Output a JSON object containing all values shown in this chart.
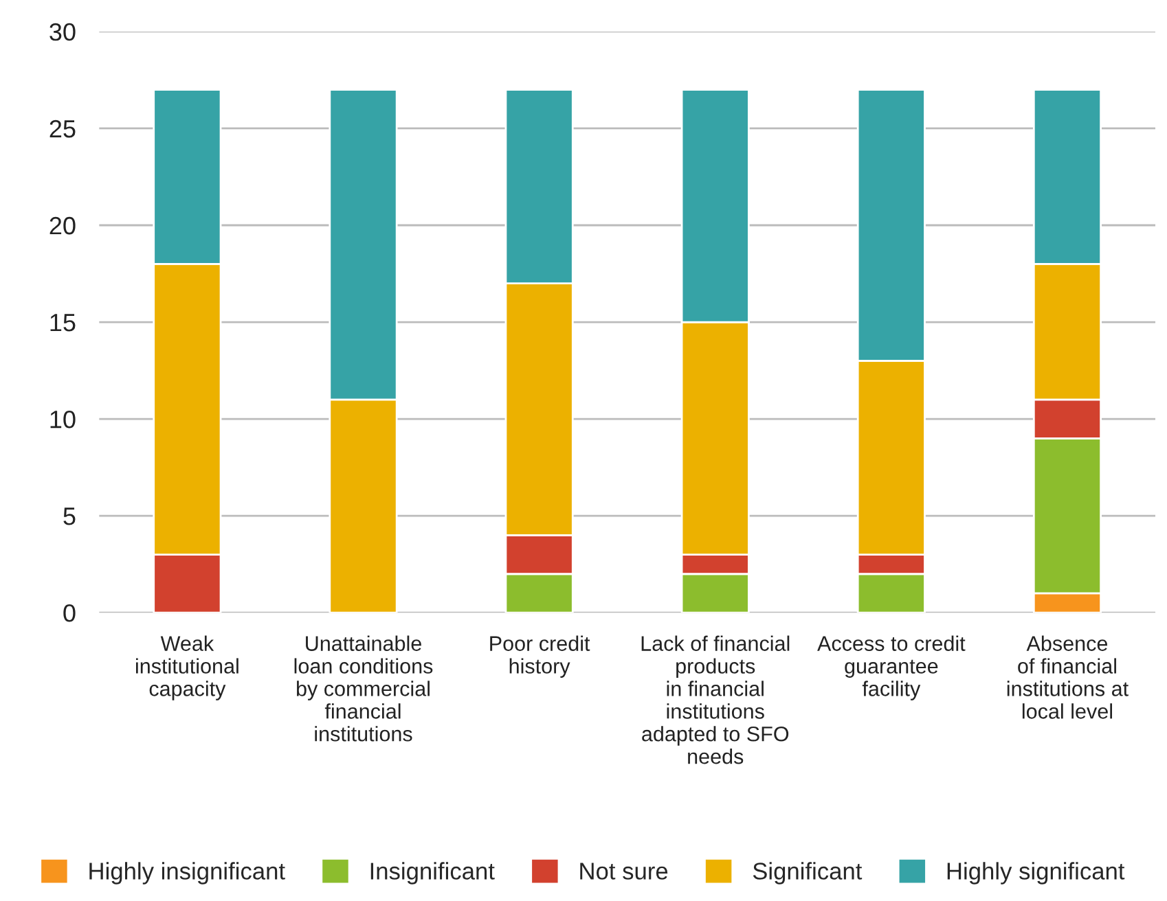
{
  "chart_data": {
    "type": "bar",
    "stacked": true,
    "categories": [
      "Weak\ninstitutional\ncapacity",
      "Unattainable\nloan conditions\nby commercial\nfinancial\ninstitutions",
      "Poor credit\nhistory",
      "Lack of financial\nproducts\nin financial\ninstitutions\nadapted to SFO\nneeds",
      "Access to credit\nguarantee\nfacility",
      "Absence\nof financial\ninstitutions at\nlocal level"
    ],
    "series": [
      {
        "name": "Highly insignificant",
        "color": "#f7941d",
        "values": [
          0,
          0,
          0,
          0,
          0,
          1
        ]
      },
      {
        "name": "Insignificant",
        "color": "#8cbd2d",
        "values": [
          0,
          0,
          2,
          2,
          2,
          8
        ]
      },
      {
        "name": "Not sure",
        "color": "#d2412e",
        "values": [
          3,
          0,
          2,
          1,
          1,
          2
        ]
      },
      {
        "name": "Significant",
        "color": "#ecb100",
        "values": [
          15,
          11,
          13,
          12,
          10,
          7
        ]
      },
      {
        "name": "Highly significant",
        "color": "#36a3a6",
        "values": [
          9,
          16,
          10,
          12,
          14,
          9
        ]
      }
    ],
    "ylim": [
      0,
      30
    ],
    "yticks": [
      0,
      5,
      10,
      15,
      20,
      25,
      30
    ],
    "grid": "y",
    "legend": "bottom"
  }
}
